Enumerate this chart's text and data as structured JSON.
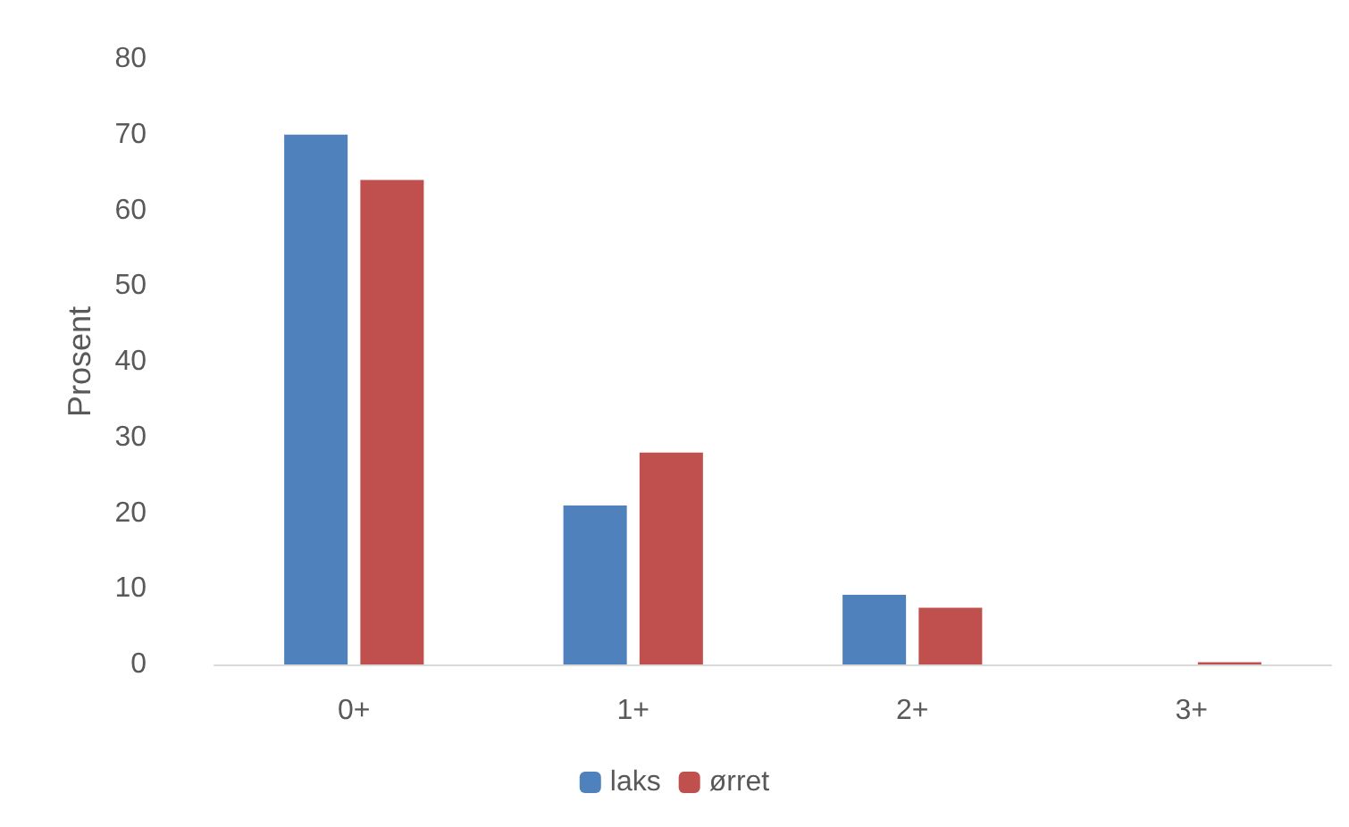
{
  "chart_data": {
    "type": "bar",
    "ylabel": "Prosent",
    "categories": [
      "0+",
      "1+",
      "2+",
      "3+"
    ],
    "series": [
      {
        "name": "laks",
        "color": "#4f81bd",
        "values": [
          70,
          21,
          9.2,
          0
        ]
      },
      {
        "name": "ørret",
        "color": "#c0504d",
        "values": [
          64,
          28,
          7.5,
          0.3
        ]
      }
    ],
    "ylim": [
      0,
      80
    ],
    "yticks": [
      0,
      10,
      20,
      30,
      40,
      50,
      60,
      70,
      80
    ],
    "grid": false,
    "legend": "bottom"
  }
}
